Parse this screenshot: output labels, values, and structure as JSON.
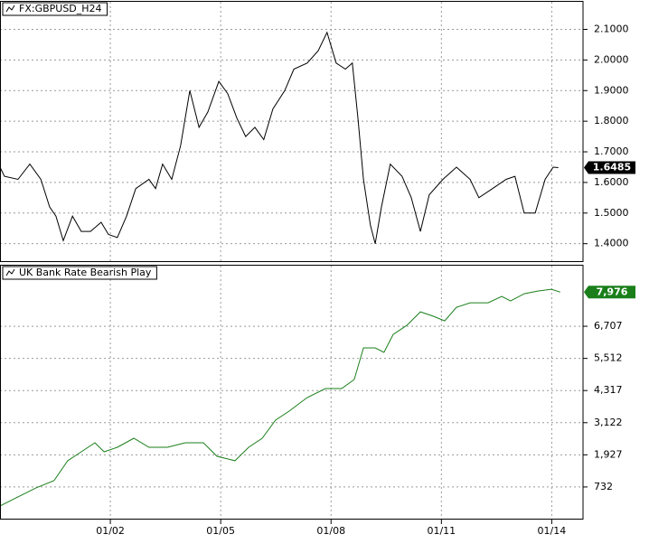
{
  "chart_data": [
    {
      "type": "line",
      "x": [
        1999.0,
        1999.12,
        1999.49,
        1999.81,
        2000.11,
        2000.35,
        2000.52,
        2000.72,
        2000.97,
        2001.21,
        2001.46,
        2001.75,
        2001.95,
        2002.19,
        2002.44,
        2002.69,
        2003.05,
        2003.23,
        2003.42,
        2003.67,
        2003.91,
        2004.16,
        2004.41,
        2004.65,
        2004.95,
        2005.19,
        2005.44,
        2005.68,
        2005.93,
        2006.17,
        2006.42,
        2006.74,
        2006.99,
        2007.35,
        2007.65,
        2007.89,
        2008.14,
        2008.39,
        2008.58,
        2008.73,
        2008.88,
        2009.07,
        2009.2,
        2009.37,
        2009.61,
        2009.93,
        2010.18,
        2010.43,
        2010.67,
        2011.04,
        2011.41,
        2011.78,
        2012.02,
        2012.39,
        2012.76,
        2013.0,
        2013.25,
        2013.55,
        2013.82,
        2014.04,
        2014.18
      ],
      "series": [
        {
          "name": "FX:GBPUSD_H24",
          "color": "#000000",
          "values": [
            1.65,
            1.62,
            1.61,
            1.66,
            1.61,
            1.52,
            1.49,
            1.41,
            1.49,
            1.44,
            1.44,
            1.47,
            1.43,
            1.42,
            1.49,
            1.58,
            1.61,
            1.58,
            1.66,
            1.61,
            1.72,
            1.9,
            1.78,
            1.83,
            1.93,
            1.89,
            1.81,
            1.75,
            1.78,
            1.74,
            1.84,
            1.9,
            1.97,
            1.99,
            2.03,
            2.09,
            1.99,
            1.97,
            1.99,
            1.81,
            1.61,
            1.46,
            1.4,
            1.52,
            1.66,
            1.62,
            1.55,
            1.44,
            1.56,
            1.61,
            1.65,
            1.61,
            1.55,
            1.58,
            1.61,
            1.62,
            1.5,
            1.5,
            1.61,
            1.65,
            1.6485
          ]
        }
      ],
      "xlim": [
        1999.0,
        2014.85
      ],
      "ylim": [
        1.34,
        2.19
      ],
      "yticks": [
        {
          "value": 1.4,
          "label": "1.4000"
        },
        {
          "value": 1.5,
          "label": "1.5000"
        },
        {
          "value": 1.6,
          "label": "1.6000"
        },
        {
          "value": 1.7,
          "label": "1.7000"
        },
        {
          "value": 1.8,
          "label": "1.8000"
        },
        {
          "value": 1.9,
          "label": "1.9000"
        },
        {
          "value": 2.0,
          "label": "2.0000"
        },
        {
          "value": 2.1,
          "label": "2.1000"
        }
      ],
      "grid": true
    },
    {
      "type": "line",
      "x": [
        1999.0,
        1999.49,
        1999.98,
        2000.47,
        2000.84,
        2001.21,
        2001.58,
        2001.83,
        2002.19,
        2002.64,
        2003.05,
        2003.55,
        2004.04,
        2004.53,
        2004.9,
        2005.39,
        2005.76,
        2006.13,
        2006.49,
        2006.86,
        2007.35,
        2007.85,
        2008.29,
        2008.63,
        2008.88,
        2009.2,
        2009.44,
        2009.69,
        2010.06,
        2010.43,
        2010.79,
        2011.09,
        2011.41,
        2011.78,
        2012.27,
        2012.64,
        2012.88,
        2013.25,
        2013.62,
        2013.99,
        2014.23
      ],
      "series": [
        {
          "name": "UK Bank Rate Bearish Play",
          "color": "#1a7f1a",
          "values": [
            27,
            363,
            698,
            967,
            1706,
            2041,
            2377,
            2041,
            2209,
            2545,
            2209,
            2209,
            2377,
            2377,
            1873,
            1706,
            2209,
            2545,
            3216,
            3552,
            4055,
            4391,
            4391,
            4727,
            5902,
            5902,
            5734,
            6405,
            6741,
            7245,
            7077,
            6909,
            7412,
            7580,
            7580,
            7815,
            7648,
            7916,
            8017,
            8084,
            7976
          ],
          "value_labels": [
            null,
            null,
            null,
            null,
            null,
            null,
            null,
            null,
            null,
            null,
            null,
            null,
            null,
            null,
            null,
            null,
            null,
            null,
            null,
            null,
            null,
            null,
            null,
            null,
            null,
            null,
            null,
            null,
            null,
            null,
            null,
            null,
            null,
            null,
            null,
            null,
            null,
            null,
            null,
            null,
            "7,976"
          ]
        }
      ],
      "xlim": [
        1999.0,
        2014.85
      ],
      "ylim": [
        -480,
        8960
      ],
      "xticks": [
        {
          "value": 2002,
          "label": "01/02"
        },
        {
          "value": 2005,
          "label": "01/05"
        },
        {
          "value": 2008,
          "label": "01/08"
        },
        {
          "value": 2011,
          "label": "01/11"
        },
        {
          "value": 2014,
          "label": "01/14"
        }
      ],
      "yticks": [
        732,
        {
          "value": 1927,
          "label": "1,927"
        },
        {
          "value": 3122,
          "label": "3,122"
        },
        {
          "value": 4317,
          "label": "4,317"
        },
        {
          "value": 5512,
          "label": "5,512"
        },
        {
          "value": 6707,
          "label": "6,707"
        }
      ],
      "grid": true
    }
  ]
}
